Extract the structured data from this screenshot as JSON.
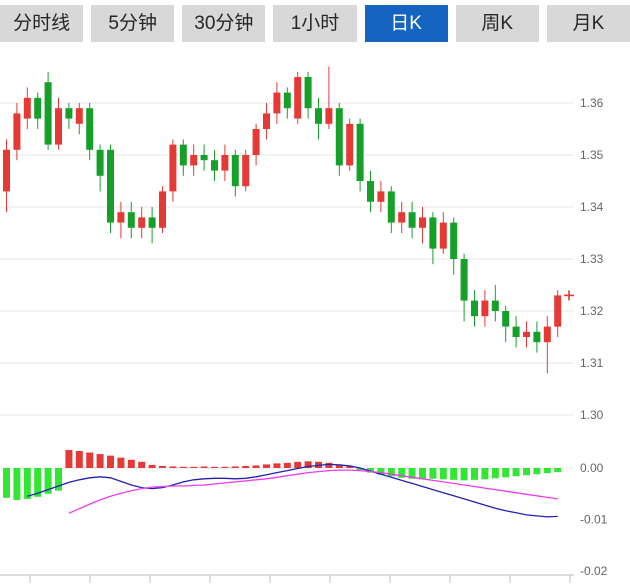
{
  "toolbar": {
    "tabs": [
      {
        "label": "分时线",
        "active": false
      },
      {
        "label": "5分钟",
        "active": false
      },
      {
        "label": "30分钟",
        "active": false
      },
      {
        "label": "1小时",
        "active": false
      },
      {
        "label": "日K",
        "active": true
      },
      {
        "label": "周K",
        "active": false
      },
      {
        "label": "月K",
        "active": false
      }
    ]
  },
  "colors": {
    "up": "#e53935",
    "down": "#16a02a",
    "hist_up": "#e53935",
    "hist_down": "#33e633",
    "dif": "#2222b2",
    "dea": "#ee3cee",
    "grid": "#e9e9e9",
    "axis_line": "#bbbbbb",
    "axis_text": "#666666",
    "tab_bg": "#d8d8d8",
    "tab_active_bg": "#1565c0",
    "tab_text": "#262626",
    "tab_active_text": "#ffffff"
  },
  "chart_data": {
    "type": "candlestick",
    "panels": [
      "price",
      "macd"
    ],
    "legend": "none",
    "grid": true,
    "price_axis": {
      "min": 1.295,
      "max": 1.369,
      "ticks": [
        {
          "value": 1.36,
          "label": "1.36"
        },
        {
          "value": 1.35,
          "label": "1.35"
        },
        {
          "value": 1.34,
          "label": "1.34"
        },
        {
          "value": 1.33,
          "label": "1.33"
        },
        {
          "value": 1.32,
          "label": "1.32"
        },
        {
          "value": 1.31,
          "label": "1.31"
        },
        {
          "value": 1.3,
          "label": "1.30"
        }
      ]
    },
    "macd_axis": {
      "min": -0.022,
      "max": 0.005,
      "ticks": [
        {
          "value": 0,
          "label": "0.00"
        },
        {
          "value": -0.01,
          "label": "-0.01"
        },
        {
          "value": -0.02,
          "label": "-0.02"
        }
      ]
    },
    "candles": [
      [
        1.343,
        1.353,
        1.339,
        1.351
      ],
      [
        1.351,
        1.36,
        1.349,
        1.358
      ],
      [
        1.357,
        1.363,
        1.355,
        1.361
      ],
      [
        1.361,
        1.362,
        1.355,
        1.357
      ],
      [
        1.364,
        1.366,
        1.351,
        1.352
      ],
      [
        1.352,
        1.361,
        1.351,
        1.359
      ],
      [
        1.359,
        1.36,
        1.355,
        1.357
      ],
      [
        1.356,
        1.36,
        1.354,
        1.359
      ],
      [
        1.359,
        1.36,
        1.349,
        1.351
      ],
      [
        1.351,
        1.352,
        1.343,
        1.346
      ],
      [
        1.351,
        1.352,
        1.335,
        1.337
      ],
      [
        1.337,
        1.341,
        1.334,
        1.339
      ],
      [
        1.339,
        1.341,
        1.334,
        1.336
      ],
      [
        1.336,
        1.34,
        1.334,
        1.338
      ],
      [
        1.338,
        1.34,
        1.333,
        1.336
      ],
      [
        1.336,
        1.344,
        1.335,
        1.343
      ],
      [
        1.343,
        1.353,
        1.341,
        1.352
      ],
      [
        1.352,
        1.353,
        1.346,
        1.348
      ],
      [
        1.348,
        1.352,
        1.346,
        1.35
      ],
      [
        1.35,
        1.352,
        1.347,
        1.349
      ],
      [
        1.349,
        1.351,
        1.345,
        1.347
      ],
      [
        1.347,
        1.352,
        1.345,
        1.35
      ],
      [
        1.35,
        1.351,
        1.342,
        1.344
      ],
      [
        1.344,
        1.351,
        1.343,
        1.35
      ],
      [
        1.35,
        1.356,
        1.348,
        1.355
      ],
      [
        1.355,
        1.36,
        1.353,
        1.358
      ],
      [
        1.358,
        1.364,
        1.356,
        1.362
      ],
      [
        1.362,
        1.363,
        1.357,
        1.359
      ],
      [
        1.357,
        1.366,
        1.356,
        1.365
      ],
      [
        1.365,
        1.366,
        1.357,
        1.359
      ],
      [
        1.359,
        1.361,
        1.353,
        1.356
      ],
      [
        1.356,
        1.367,
        1.355,
        1.359
      ],
      [
        1.359,
        1.36,
        1.346,
        1.348
      ],
      [
        1.348,
        1.357,
        1.347,
        1.356
      ],
      [
        1.356,
        1.357,
        1.343,
        1.345
      ],
      [
        1.345,
        1.347,
        1.339,
        1.341
      ],
      [
        1.341,
        1.345,
        1.339,
        1.343
      ],
      [
        1.343,
        1.344,
        1.335,
        1.337
      ],
      [
        1.337,
        1.341,
        1.335,
        1.339
      ],
      [
        1.339,
        1.341,
        1.334,
        1.336
      ],
      [
        1.336,
        1.34,
        1.333,
        1.338
      ],
      [
        1.338,
        1.339,
        1.329,
        1.332
      ],
      [
        1.332,
        1.339,
        1.331,
        1.337
      ],
      [
        1.337,
        1.338,
        1.327,
        1.33
      ],
      [
        1.33,
        1.331,
        1.318,
        1.322
      ],
      [
        1.322,
        1.324,
        1.317,
        1.319
      ],
      [
        1.319,
        1.324,
        1.317,
        1.322
      ],
      [
        1.322,
        1.325,
        1.318,
        1.32
      ],
      [
        1.32,
        1.321,
        1.314,
        1.317
      ],
      [
        1.317,
        1.319,
        1.313,
        1.315
      ],
      [
        1.315,
        1.318,
        1.313,
        1.316
      ],
      [
        1.316,
        1.318,
        1.312,
        1.314
      ],
      [
        1.314,
        1.319,
        1.308,
        1.317
      ],
      [
        1.317,
        1.324,
        1.315,
        1.323
      ]
    ],
    "macd": {
      "histogram": [
        -0.0058,
        -0.0062,
        -0.006,
        -0.0056,
        -0.005,
        -0.0044,
        0.0035,
        0.0033,
        0.003,
        0.0027,
        0.0024,
        0.002,
        0.0016,
        0.0012,
        0.0006,
        0.0004,
        0.0003,
        0.0002,
        0.0002,
        0.0003,
        0.0002,
        0.0002,
        0.0003,
        0.0004,
        0.0005,
        0.0007,
        0.0009,
        0.001,
        0.0012,
        0.0013,
        0.0012,
        0.001,
        0.0007,
        0.0004,
        -0.0004,
        -0.0009,
        -0.0013,
        -0.0016,
        -0.0019,
        -0.0021,
        -0.0022,
        -0.0021,
        -0.0022,
        -0.0023,
        -0.0024,
        -0.0023,
        -0.0022,
        -0.002,
        -0.0018,
        -0.0016,
        -0.0014,
        -0.0012,
        -0.001,
        -0.0008
      ],
      "dif": [
        null,
        null,
        -0.0055,
        -0.0049,
        -0.0042,
        -0.0035,
        -0.0028,
        -0.0023,
        -0.0019,
        -0.0017,
        -0.0019,
        -0.0026,
        -0.0033,
        -0.0038,
        -0.004,
        -0.0038,
        -0.0033,
        -0.0027,
        -0.0023,
        -0.0021,
        -0.002,
        -0.002,
        -0.0021,
        -0.002,
        -0.0017,
        -0.0013,
        -0.0009,
        -0.0005,
        -0.0001,
        0.0003,
        0.0005,
        0.0007,
        0.0006,
        0.0004,
        0.0,
        -0.0006,
        -0.0012,
        -0.0018,
        -0.0024,
        -0.003,
        -0.0036,
        -0.0042,
        -0.0048,
        -0.0054,
        -0.006,
        -0.0066,
        -0.0072,
        -0.0078,
        -0.0083,
        -0.0087,
        -0.0091,
        -0.0093,
        -0.0095,
        -0.0094
      ],
      "dea": [
        null,
        null,
        null,
        null,
        null,
        null,
        -0.0088,
        -0.0079,
        -0.007,
        -0.0062,
        -0.0055,
        -0.0049,
        -0.0044,
        -0.004,
        -0.0037,
        -0.0036,
        -0.0035,
        -0.0035,
        -0.0034,
        -0.0033,
        -0.0031,
        -0.0029,
        -0.0027,
        -0.0025,
        -0.0023,
        -0.0021,
        -0.0018,
        -0.0015,
        -0.0012,
        -0.0009,
        -0.0007,
        -0.0005,
        -0.0004,
        -0.0004,
        -0.0005,
        -0.0007,
        -0.0009,
        -0.0012,
        -0.0015,
        -0.0018,
        -0.0021,
        -0.0024,
        -0.0027,
        -0.003,
        -0.0033,
        -0.0036,
        -0.0039,
        -0.0042,
        -0.0045,
        -0.0048,
        -0.0051,
        -0.0054,
        -0.0057,
        -0.006
      ]
    },
    "latest_price_marker": {
      "price": 1.323,
      "symbol": "+",
      "color": "#e53935"
    }
  }
}
